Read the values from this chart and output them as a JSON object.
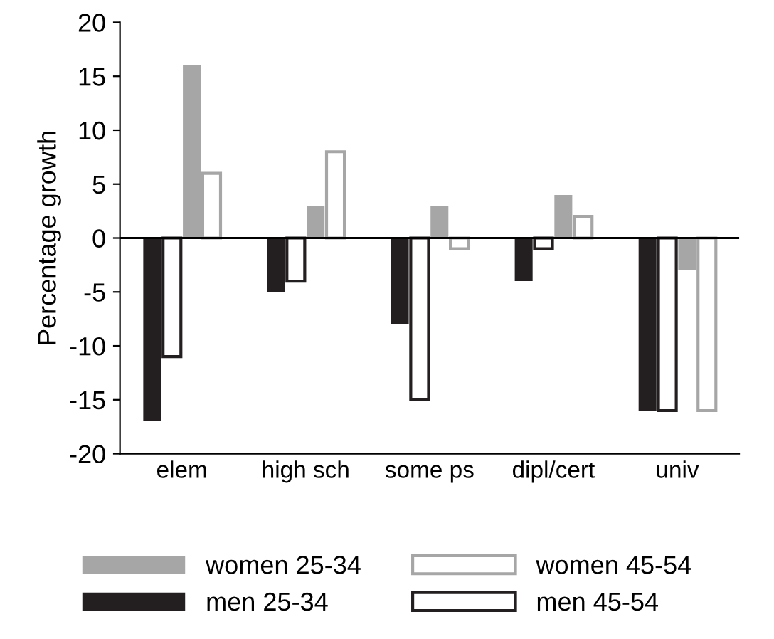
{
  "chart_data": {
    "type": "bar",
    "ylabel": "Percentage growth",
    "categories": [
      "elem",
      "high sch",
      "some ps",
      "dipl/cert",
      "univ"
    ],
    "series": [
      {
        "name": "men 25-34",
        "color": "#231f20",
        "values": [
          -17,
          -5,
          -8,
          -4,
          -16
        ]
      },
      {
        "name": "men 45-54",
        "color": "#231f20",
        "values": [
          -11,
          -4,
          -15,
          -1,
          -16
        ]
      },
      {
        "name": "women 25-34",
        "color": "#a6a6a6",
        "values": [
          16,
          3,
          3,
          4,
          -3
        ]
      },
      {
        "name": "women 45-54",
        "color": "#a6a6a6",
        "values": [
          6,
          8,
          -1,
          2,
          -16
        ]
      }
    ],
    "ylim": [
      -20,
      20
    ],
    "yticks": [
      -20,
      -15,
      -10,
      -5,
      0,
      5,
      10,
      15,
      20
    ],
    "ref_lines": [
      {
        "axis": "y",
        "value": 0,
        "color": "#000000"
      }
    ],
    "legend": "bottom"
  }
}
